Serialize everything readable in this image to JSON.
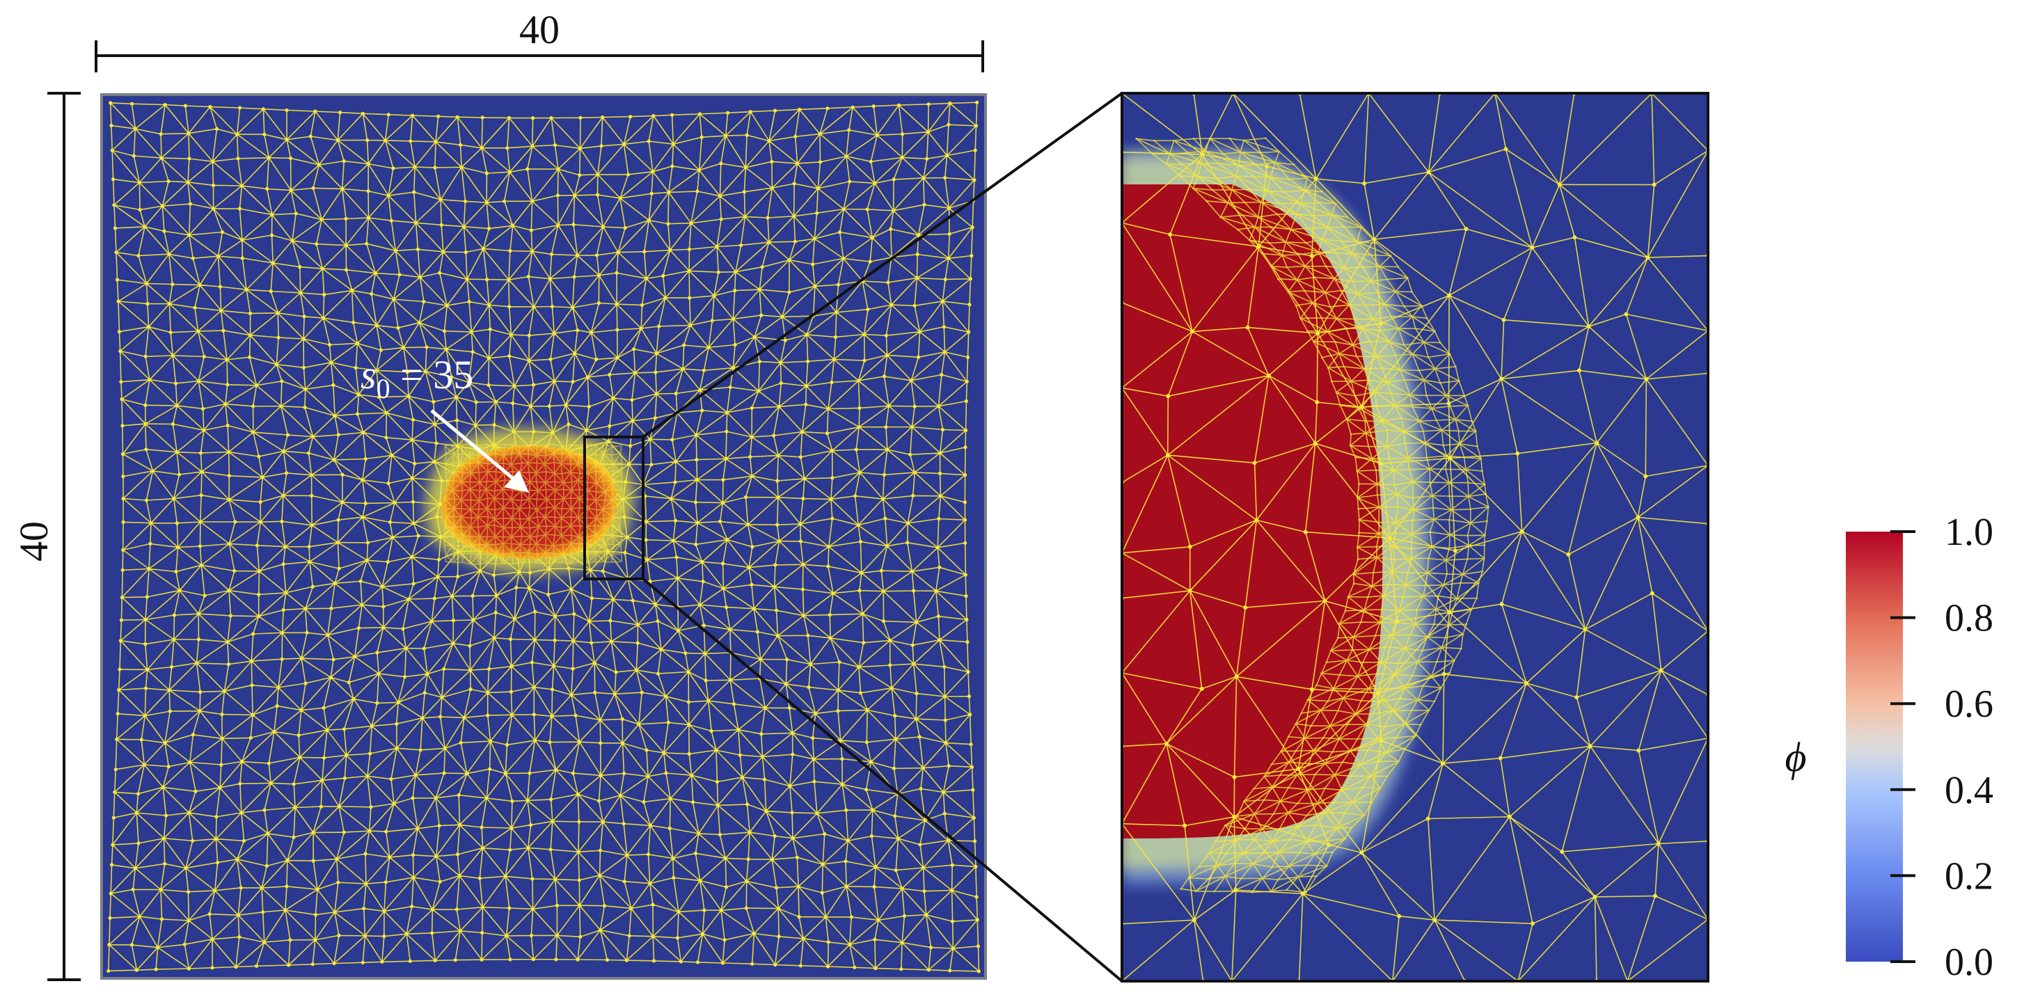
{
  "dimensions": {
    "width_label": "40",
    "height_label": "40"
  },
  "annotation": {
    "symbol": "s",
    "subscript": "0",
    "equals_text": " = 35"
  },
  "colorbar": {
    "symbol": "ϕ",
    "ticks": [
      "1.0",
      "0.8",
      "0.6",
      "0.4",
      "0.2",
      "0.0"
    ],
    "tick_values": [
      1.0,
      0.8,
      0.6,
      0.4,
      0.2,
      0.0
    ],
    "range": [
      0.0,
      1.0
    ],
    "colormap": "coolwarm",
    "colors": {
      "low": "#3a4cc0",
      "mid": "#f0ece8",
      "high": "#b40426"
    }
  },
  "colors": {
    "domain_background": "#2b3990",
    "mesh_lines": "#f7e83a",
    "interface_glow": "#f1e93f",
    "inclusion_core": "#a80f1f"
  }
}
